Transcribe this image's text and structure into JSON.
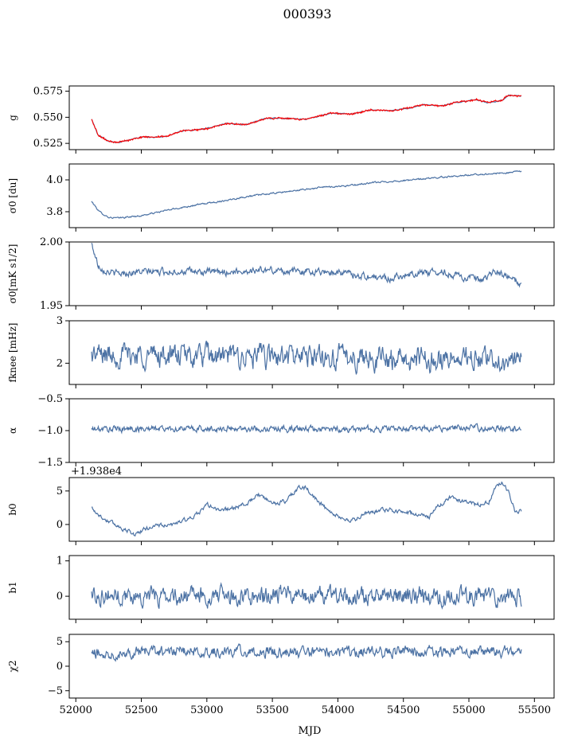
{
  "figure": {
    "title": "000393",
    "xlabel": "MJD",
    "xlim": [
      51950,
      55650
    ],
    "xticks": [
      52000,
      52500,
      53000,
      53500,
      54000,
      54500,
      55000,
      55500
    ],
    "xtick_labels": [
      "52000",
      "52500",
      "53000",
      "53500",
      "54000",
      "54500",
      "55000",
      "55500"
    ],
    "line_color": "#4c72a4",
    "highlight_color": "#ff0000"
  },
  "chart_data": [
    {
      "type": "line",
      "ylabel": "g",
      "ylim": [
        0.519,
        0.58
      ],
      "yticks": [
        0.525,
        0.55,
        0.575
      ],
      "ytick_labels": [
        "0.525",
        "0.550",
        "0.575"
      ],
      "x_range": [
        52120,
        55400
      ],
      "series": [
        {
          "color": "#4c72a4",
          "knots": [
            [
              52120,
              0.548
            ],
            [
              52170,
              0.533
            ],
            [
              52250,
              0.527
            ],
            [
              52320,
              0.526
            ],
            [
              52400,
              0.528
            ],
            [
              52500,
              0.531
            ],
            [
              52600,
              0.531
            ],
            [
              52700,
              0.532
            ],
            [
              52800,
              0.537
            ],
            [
              52900,
              0.538
            ],
            [
              53000,
              0.539
            ],
            [
              53150,
              0.544
            ],
            [
              53300,
              0.543
            ],
            [
              53450,
              0.549
            ],
            [
              53600,
              0.549
            ],
            [
              53750,
              0.548
            ],
            [
              53850,
              0.551
            ],
            [
              53950,
              0.554
            ],
            [
              54100,
              0.553
            ],
            [
              54250,
              0.557
            ],
            [
              54400,
              0.556
            ],
            [
              54550,
              0.559
            ],
            [
              54650,
              0.562
            ],
            [
              54800,
              0.561
            ],
            [
              54900,
              0.564
            ],
            [
              55050,
              0.567
            ],
            [
              55150,
              0.564
            ],
            [
              55250,
              0.566
            ],
            [
              55300,
              0.571
            ],
            [
              55400,
              0.57
            ]
          ]
        },
        {
          "color": "#ff0000",
          "knots": [
            [
              52120,
              0.548
            ],
            [
              52170,
              0.533
            ],
            [
              52250,
              0.527
            ],
            [
              52320,
              0.526
            ],
            [
              52400,
              0.528
            ],
            [
              52500,
              0.531
            ],
            [
              52600,
              0.531
            ],
            [
              52700,
              0.532
            ],
            [
              52800,
              0.537
            ],
            [
              52900,
              0.538
            ],
            [
              53000,
              0.539
            ],
            [
              53150,
              0.544
            ],
            [
              53300,
              0.543
            ],
            [
              53450,
              0.549
            ],
            [
              53600,
              0.549
            ],
            [
              53750,
              0.548
            ],
            [
              53850,
              0.551
            ],
            [
              53950,
              0.554
            ],
            [
              54100,
              0.553
            ],
            [
              54250,
              0.557
            ],
            [
              54400,
              0.556
            ],
            [
              54550,
              0.559
            ],
            [
              54650,
              0.562
            ],
            [
              54800,
              0.561
            ],
            [
              54900,
              0.564
            ],
            [
              55050,
              0.567
            ],
            [
              55150,
              0.564
            ],
            [
              55250,
              0.566
            ],
            [
              55300,
              0.571
            ],
            [
              55400,
              0.57
            ]
          ]
        }
      ]
    },
    {
      "type": "line",
      "ylabel": "σ0 [du]",
      "ylim": [
        3.7,
        4.1
      ],
      "yticks": [
        3.8,
        4.0
      ],
      "ytick_labels": [
        "3.8",
        "4.0"
      ],
      "x_range": [
        52120,
        55400
      ],
      "series": [
        {
          "color": "#4c72a4",
          "knots": [
            [
              52120,
              3.865
            ],
            [
              52180,
              3.8
            ],
            [
              52250,
              3.765
            ],
            [
              52320,
              3.76
            ],
            [
              52500,
              3.775
            ],
            [
              52700,
              3.81
            ],
            [
              52900,
              3.84
            ],
            [
              53100,
              3.865
            ],
            [
              53300,
              3.895
            ],
            [
              53500,
              3.915
            ],
            [
              53700,
              3.935
            ],
            [
              53900,
              3.955
            ],
            [
              54100,
              3.965
            ],
            [
              54300,
              3.985
            ],
            [
              54500,
              3.995
            ],
            [
              54700,
              4.01
            ],
            [
              54900,
              4.025
            ],
            [
              55100,
              4.035
            ],
            [
              55300,
              4.045
            ],
            [
              55400,
              4.055
            ]
          ]
        }
      ]
    },
    {
      "type": "line",
      "ylabel": "σ0[mK s1/2]",
      "ylim": [
        1.95,
        2.0
      ],
      "yticks": [
        1.95,
        2.0
      ],
      "ytick_labels": [
        "1.95",
        "2.00"
      ],
      "x_range": [
        52120,
        55400
      ],
      "series": [
        {
          "color": "#4c72a4",
          "knots": [
            [
              52120,
              1.9985
            ],
            [
              52170,
              1.982
            ],
            [
              52220,
              1.978
            ],
            [
              52300,
              1.975
            ],
            [
              52500,
              1.9765
            ],
            [
              52800,
              1.977
            ],
            [
              53100,
              1.976
            ],
            [
              53400,
              1.978
            ],
            [
              53700,
              1.977
            ],
            [
              54000,
              1.9765
            ],
            [
              54200,
              1.973
            ],
            [
              54400,
              1.9715
            ],
            [
              54600,
              1.976
            ],
            [
              54800,
              1.9765
            ],
            [
              55000,
              1.9715
            ],
            [
              55100,
              1.969
            ],
            [
              55200,
              1.977
            ],
            [
              55300,
              1.972
            ],
            [
              55400,
              1.967
            ]
          ]
        }
      ]
    },
    {
      "type": "line",
      "ylabel": "fknee [mHz]",
      "ylim": [
        1.5,
        3.0
      ],
      "yticks": [
        2,
        3
      ],
      "ytick_labels": [
        "2",
        "3"
      ],
      "x_range": [
        52120,
        55400
      ],
      "series": [
        {
          "color": "#4c72a4",
          "knots": [
            [
              52120,
              2.2
            ],
            [
              52500,
              2.2
            ],
            [
              53000,
              2.15
            ],
            [
              53500,
              2.15
            ],
            [
              54000,
              2.15
            ],
            [
              54500,
              2.1
            ],
            [
              55000,
              2.1
            ],
            [
              55400,
              2.05
            ]
          ]
        }
      ]
    },
    {
      "type": "line",
      "ylabel": "α",
      "ylim": [
        -1.5,
        -0.5
      ],
      "yticks": [
        -1.5,
        -1.0,
        -0.5
      ],
      "ytick_labels": [
        "−1.5",
        "−1.0",
        "−0.5"
      ],
      "x_range": [
        52120,
        55400
      ],
      "series": [
        {
          "color": "#4c72a4",
          "knots": [
            [
              52120,
              -0.98
            ],
            [
              52500,
              -0.97
            ],
            [
              53000,
              -0.97
            ],
            [
              53500,
              -0.97
            ],
            [
              54000,
              -0.98
            ],
            [
              54500,
              -0.97
            ],
            [
              55000,
              -0.96
            ],
            [
              55400,
              -0.96
            ]
          ]
        }
      ]
    },
    {
      "type": "line",
      "ylabel": "b0",
      "offset_text": "+1.938e4",
      "ylim": [
        -2.5,
        7.0
      ],
      "yticks": [
        0,
        5
      ],
      "ytick_labels": [
        "0",
        "5"
      ],
      "x_range": [
        52120,
        55400
      ],
      "series": [
        {
          "color": "#4c72a4",
          "knots": [
            [
              52120,
              2.5
            ],
            [
              52200,
              1.0
            ],
            [
              52300,
              0.0
            ],
            [
              52450,
              -1.5
            ],
            [
              52550,
              -0.5
            ],
            [
              52650,
              0.0
            ],
            [
              52700,
              -0.3
            ],
            [
              52800,
              0.5
            ],
            [
              52900,
              1.0
            ],
            [
              53000,
              3.0
            ],
            [
              53100,
              2.0
            ],
            [
              53200,
              2.5
            ],
            [
              53300,
              3.0
            ],
            [
              53400,
              4.5
            ],
            [
              53500,
              3.0
            ],
            [
              53600,
              3.5
            ],
            [
              53700,
              5.5
            ],
            [
              53750,
              5.5
            ],
            [
              53850,
              3.5
            ],
            [
              53950,
              1.5
            ],
            [
              54100,
              0.5
            ],
            [
              54200,
              1.5
            ],
            [
              54300,
              2.0
            ],
            [
              54400,
              2.2
            ],
            [
              54500,
              1.8
            ],
            [
              54600,
              1.5
            ],
            [
              54700,
              1.2
            ],
            [
              54750,
              2.5
            ],
            [
              54850,
              4.0
            ],
            [
              54950,
              3.5
            ],
            [
              55050,
              3.0
            ],
            [
              55150,
              3.2
            ],
            [
              55200,
              5.5
            ],
            [
              55250,
              6.3
            ],
            [
              55300,
              5.0
            ],
            [
              55350,
              2.0
            ],
            [
              55400,
              2.0
            ]
          ]
        }
      ]
    },
    {
      "type": "line",
      "ylabel": "b1",
      "ylim": [
        -0.65,
        1.15
      ],
      "yticks": [
        0,
        1
      ],
      "ytick_labels": [
        "0",
        "1"
      ],
      "x_range": [
        52120,
        55400
      ],
      "series": [
        {
          "color": "#4c72a4",
          "knots": [
            [
              52120,
              0.05
            ],
            [
              52500,
              0.0
            ],
            [
              53000,
              0.0
            ],
            [
              53500,
              0.0
            ],
            [
              54000,
              0.0
            ],
            [
              54500,
              0.0
            ],
            [
              55000,
              0.0
            ],
            [
              55400,
              0.0
            ]
          ]
        }
      ]
    },
    {
      "type": "line",
      "ylabel": "χ2",
      "ylim": [
        -6.5,
        6.5
      ],
      "yticks": [
        -5,
        0,
        5
      ],
      "ytick_labels": [
        "−5",
        "0",
        "5"
      ],
      "x_range": [
        52120,
        55400
      ],
      "series": [
        {
          "color": "#4c72a4",
          "knots": [
            [
              52120,
              2.5
            ],
            [
              52500,
              3.0
            ],
            [
              53000,
              3.0
            ],
            [
              53500,
              3.0
            ],
            [
              54000,
              2.8
            ],
            [
              54500,
              3.0
            ],
            [
              55000,
              3.0
            ],
            [
              55400,
              3.0
            ]
          ]
        }
      ]
    }
  ]
}
